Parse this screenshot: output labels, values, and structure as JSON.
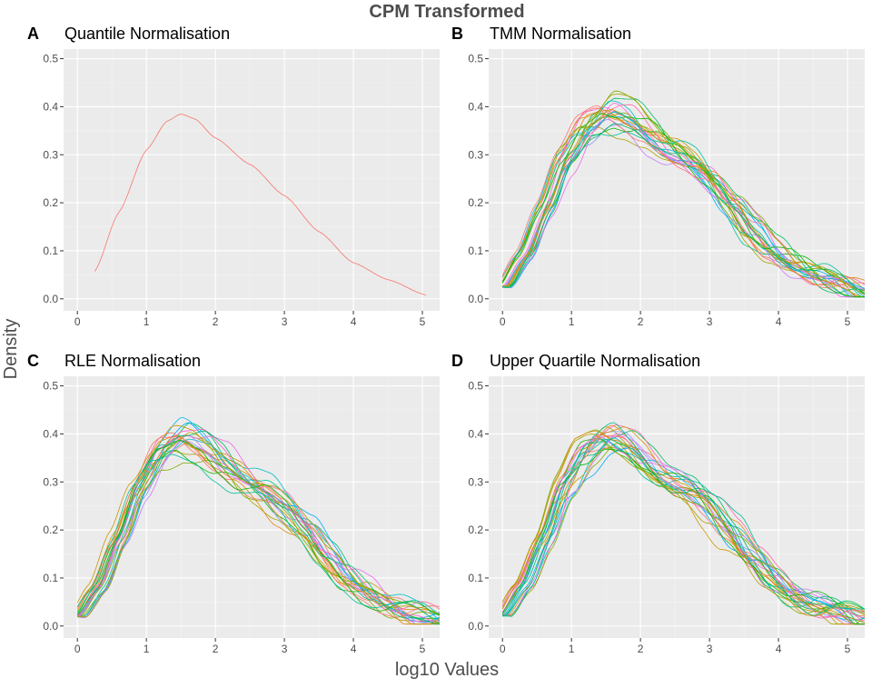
{
  "figure": {
    "title": "CPM Transformed",
    "xlabel": "log10 Values",
    "ylabel": "Density",
    "colors": {
      "panel_background": "#ebebeb",
      "grid": "#ffffff",
      "text": "#4d4d4d"
    }
  },
  "chart_data": [
    {
      "type": "line",
      "panel": "A",
      "title": "Quantile Normalisation",
      "xlim": [
        -0.2,
        5.25
      ],
      "ylim": [
        -0.025,
        0.52
      ],
      "x_ticks": [
        "0",
        "1",
        "2",
        "3",
        "4",
        "5"
      ],
      "y_ticks": [
        "0.0",
        "0.1",
        "0.2",
        "0.3",
        "0.4",
        "0.5"
      ],
      "grid": true,
      "legend": "none",
      "x": [
        0.25,
        0.6,
        1.0,
        1.3,
        1.5,
        1.7,
        2.0,
        2.5,
        3.0,
        3.5,
        4.0,
        4.5,
        5.05
      ],
      "series": [
        {
          "values": [
            0.057,
            0.18,
            0.31,
            0.37,
            0.385,
            0.375,
            0.335,
            0.28,
            0.215,
            0.14,
            0.075,
            0.04,
            0.008
          ],
          "color": "#f8766d"
        }
      ],
      "n_overlaid_series": 1
    },
    {
      "type": "line",
      "panel": "B",
      "title": "TMM Normalisation",
      "xlim": [
        -0.2,
        5.25
      ],
      "ylim": [
        -0.025,
        0.52
      ],
      "x_ticks": [
        "0",
        "1",
        "2",
        "3",
        "4",
        "5"
      ],
      "y_ticks": [
        "0.0",
        "0.1",
        "0.2",
        "0.3",
        "0.4",
        "0.5"
      ],
      "grid": true,
      "legend": "none",
      "x": [
        0.0,
        0.3,
        0.6,
        0.9,
        1.2,
        1.5,
        1.8,
        2.1,
        2.4,
        2.7,
        3.0,
        3.3,
        3.6,
        3.9,
        4.2,
        4.5,
        4.8,
        5.25
      ],
      "series": [
        {
          "values": [
            0.025,
            0.09,
            0.185,
            0.29,
            0.36,
            0.39,
            0.375,
            0.34,
            0.305,
            0.28,
            0.245,
            0.2,
            0.145,
            0.1,
            0.07,
            0.045,
            0.03,
            0.012
          ],
          "color": "#f8766d"
        }
      ],
      "n_overlaid_series": 24
    },
    {
      "type": "line",
      "panel": "C",
      "title": "RLE Normalisation",
      "xlim": [
        -0.2,
        5.25
      ],
      "ylim": [
        -0.025,
        0.52
      ],
      "x_ticks": [
        "0",
        "1",
        "2",
        "3",
        "4",
        "5"
      ],
      "y_ticks": [
        "0.0",
        "0.1",
        "0.2",
        "0.3",
        "0.4",
        "0.5"
      ],
      "grid": true,
      "legend": "none",
      "x": [
        0.0,
        0.3,
        0.6,
        0.9,
        1.2,
        1.5,
        1.8,
        2.1,
        2.4,
        2.7,
        3.0,
        3.3,
        3.6,
        3.9,
        4.2,
        4.5,
        4.8,
        5.25
      ],
      "series": [
        {
          "values": [
            0.02,
            0.08,
            0.18,
            0.29,
            0.36,
            0.39,
            0.375,
            0.34,
            0.305,
            0.28,
            0.245,
            0.2,
            0.145,
            0.1,
            0.07,
            0.045,
            0.028,
            0.012
          ],
          "color": "#f8766d"
        }
      ],
      "n_overlaid_series": 24
    },
    {
      "type": "line",
      "panel": "D",
      "title": "Upper Quartile Normalisation",
      "xlim": [
        -0.2,
        5.25
      ],
      "ylim": [
        -0.025,
        0.52
      ],
      "x_ticks": [
        "0",
        "1",
        "2",
        "3",
        "4",
        "5"
      ],
      "y_ticks": [
        "0.0",
        "0.1",
        "0.2",
        "0.3",
        "0.4",
        "0.5"
      ],
      "grid": true,
      "legend": "none",
      "x": [
        0.0,
        0.3,
        0.6,
        0.9,
        1.2,
        1.5,
        1.8,
        2.1,
        2.4,
        2.7,
        3.0,
        3.3,
        3.6,
        3.9,
        4.2,
        4.5,
        4.8,
        5.25
      ],
      "series": [
        {
          "values": [
            0.022,
            0.085,
            0.18,
            0.29,
            0.36,
            0.39,
            0.375,
            0.34,
            0.305,
            0.28,
            0.245,
            0.2,
            0.145,
            0.1,
            0.07,
            0.045,
            0.03,
            0.012
          ],
          "color": "#f8766d"
        }
      ],
      "n_overlaid_series": 24
    }
  ],
  "palette": [
    "#f8766d",
    "#e68613",
    "#cd9600",
    "#aba300",
    "#7cae00",
    "#0cb702",
    "#00be67",
    "#00c19a",
    "#00bfc4",
    "#00b8e7",
    "#00a9ff",
    "#8494ff",
    "#c77cff",
    "#ed68ed",
    "#ff61cc",
    "#ff68a1"
  ]
}
